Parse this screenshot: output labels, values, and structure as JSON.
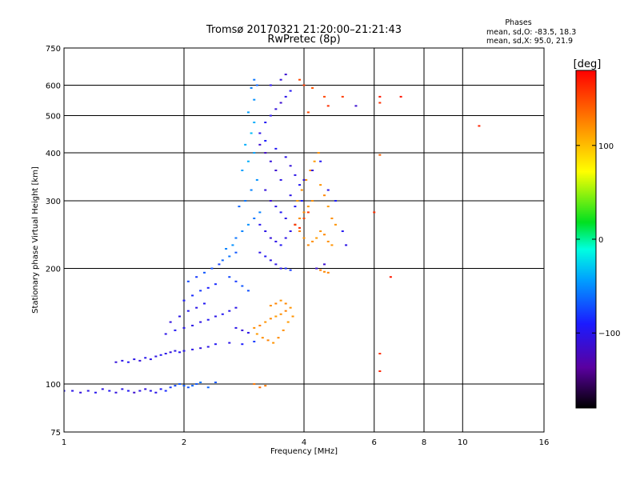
{
  "title": "Tromsø 20170321 21:20:00–21:21:43",
  "subtitle": "RwPretec (8p)",
  "stats": {
    "heading": "Phases",
    "line_o": "mean, sd,O: -83.5, 18.3",
    "line_x": "mean, sd,X:  95.0, 21.9"
  },
  "colorbar": {
    "label": "[deg]",
    "ticks": [
      {
        "value": 100,
        "label": "100"
      },
      {
        "value": 0,
        "label": "0"
      },
      {
        "value": -100,
        "label": "−100"
      }
    ]
  },
  "chart_data": {
    "type": "scatter",
    "xlabel": "Frequency [MHz]",
    "ylabel": "Stationary phase Virtual Height [km]",
    "xscale": "log",
    "yscale": "log",
    "xlim": [
      1,
      16
    ],
    "ylim": [
      75,
      750
    ],
    "clim": [
      -180,
      180
    ],
    "x_ticks": [
      {
        "value": 1,
        "label": "1"
      },
      {
        "value": 2,
        "label": "2"
      },
      {
        "value": 4,
        "label": "4"
      },
      {
        "value": 6,
        "label": "6"
      },
      {
        "value": 8,
        "label": "8"
      },
      {
        "value": 10,
        "label": "10"
      },
      {
        "value": 16,
        "label": "16"
      }
    ],
    "y_ticks": [
      {
        "value": 75,
        "label": "75"
      },
      {
        "value": 100,
        "label": "100"
      },
      {
        "value": 200,
        "label": "200"
      },
      {
        "value": 300,
        "label": "300"
      },
      {
        "value": 400,
        "label": "400"
      },
      {
        "value": 500,
        "label": "500"
      },
      {
        "value": 600,
        "label": "600"
      },
      {
        "value": 750,
        "label": "750"
      }
    ],
    "series": [
      {
        "points": [
          [
            1.0,
            96,
            -95
          ],
          [
            1.05,
            96,
            -100
          ],
          [
            1.1,
            95,
            -105
          ],
          [
            1.15,
            96,
            -100
          ],
          [
            1.2,
            95,
            -98
          ],
          [
            1.25,
            97,
            -102
          ],
          [
            1.3,
            96,
            -96
          ],
          [
            1.35,
            95,
            -104
          ],
          [
            1.4,
            97,
            -100
          ],
          [
            1.45,
            96,
            -95
          ],
          [
            1.5,
            95,
            -110
          ],
          [
            1.55,
            96,
            -100
          ],
          [
            1.6,
            97,
            -105
          ],
          [
            1.65,
            96,
            -98
          ],
          [
            1.7,
            95,
            -100
          ],
          [
            1.75,
            97,
            -92
          ],
          [
            1.8,
            96,
            -85
          ],
          [
            1.85,
            98,
            -80
          ],
          [
            1.9,
            99,
            -75
          ],
          [
            1.95,
            100,
            -70
          ],
          [
            2.0,
            99,
            -68
          ],
          [
            2.05,
            98,
            -72
          ],
          [
            2.1,
            99,
            -65
          ],
          [
            2.15,
            100,
            -70
          ],
          [
            2.2,
            101,
            -60
          ],
          [
            2.3,
            98,
            -65
          ],
          [
            2.4,
            101,
            -70
          ],
          [
            1.35,
            114,
            -105
          ],
          [
            1.4,
            115,
            -100
          ],
          [
            1.45,
            114,
            -95
          ],
          [
            1.5,
            116,
            -100
          ],
          [
            1.55,
            115,
            -105
          ],
          [
            1.6,
            117,
            -98
          ],
          [
            1.65,
            116,
            -100
          ],
          [
            1.7,
            118,
            -102
          ],
          [
            1.75,
            119,
            -96
          ],
          [
            1.8,
            120,
            -100
          ],
          [
            1.85,
            121,
            -104
          ],
          [
            1.9,
            122,
            -100
          ],
          [
            1.95,
            121,
            -95
          ],
          [
            2.0,
            122,
            -98
          ],
          [
            2.1,
            123,
            -100
          ],
          [
            2.2,
            124,
            -105
          ],
          [
            2.3,
            125,
            -100
          ],
          [
            2.4,
            127,
            -95
          ],
          [
            2.6,
            128,
            -100
          ],
          [
            2.8,
            127,
            -90
          ],
          [
            3.0,
            129,
            -80
          ],
          [
            1.8,
            135,
            -100
          ],
          [
            1.9,
            138,
            -95
          ],
          [
            2.0,
            140,
            -98
          ],
          [
            2.1,
            142,
            -100
          ],
          [
            2.2,
            145,
            -102
          ],
          [
            2.3,
            147,
            -96
          ],
          [
            2.4,
            150,
            -100
          ],
          [
            2.5,
            152,
            -95
          ],
          [
            2.6,
            155,
            -98
          ],
          [
            2.7,
            158,
            -100
          ],
          [
            1.85,
            145,
            -104
          ],
          [
            1.95,
            150,
            -100
          ],
          [
            2.05,
            155,
            -96
          ],
          [
            2.15,
            158,
            -100
          ],
          [
            2.25,
            162,
            -95
          ],
          [
            2.0,
            165,
            -90
          ],
          [
            2.1,
            170,
            -85
          ],
          [
            2.2,
            175,
            -80
          ],
          [
            2.3,
            178,
            -90
          ],
          [
            2.4,
            182,
            -85
          ],
          [
            2.05,
            185,
            -75
          ],
          [
            2.15,
            190,
            -80
          ],
          [
            2.25,
            195,
            -70
          ],
          [
            2.35,
            200,
            -72
          ],
          [
            2.45,
            205,
            -78
          ],
          [
            2.5,
            210,
            -65
          ],
          [
            2.6,
            215,
            -60
          ],
          [
            2.7,
            220,
            -70
          ],
          [
            2.55,
            225,
            -55
          ],
          [
            2.65,
            230,
            -50
          ],
          [
            2.7,
            240,
            -60
          ],
          [
            2.8,
            250,
            -55
          ],
          [
            2.9,
            260,
            -50
          ],
          [
            3.0,
            270,
            -60
          ],
          [
            3.1,
            280,
            -55
          ],
          [
            2.75,
            290,
            -65
          ],
          [
            2.85,
            300,
            -60
          ],
          [
            2.95,
            320,
            -55
          ],
          [
            3.05,
            340,
            -50
          ],
          [
            2.8,
            360,
            -45
          ],
          [
            2.9,
            380,
            -40
          ],
          [
            3.0,
            400,
            -45
          ],
          [
            2.85,
            420,
            -40
          ],
          [
            2.95,
            450,
            -35
          ],
          [
            3.0,
            480,
            -40
          ],
          [
            2.9,
            510,
            -45
          ],
          [
            3.0,
            550,
            -50
          ],
          [
            2.95,
            590,
            -55
          ],
          [
            3.0,
            620,
            -60
          ],
          [
            3.05,
            600,
            -65
          ],
          [
            3.1,
            420,
            -110
          ],
          [
            3.2,
            400,
            -115
          ],
          [
            3.3,
            380,
            -105
          ],
          [
            3.4,
            360,
            -110
          ],
          [
            3.5,
            340,
            -100
          ],
          [
            3.2,
            320,
            -105
          ],
          [
            3.3,
            300,
            -110
          ],
          [
            3.4,
            290,
            -100
          ],
          [
            3.5,
            280,
            -95
          ],
          [
            3.6,
            270,
            -100
          ],
          [
            3.1,
            260,
            -98
          ],
          [
            3.2,
            250,
            -100
          ],
          [
            3.3,
            240,
            -105
          ],
          [
            3.4,
            235,
            -100
          ],
          [
            3.5,
            230,
            -95
          ],
          [
            3.6,
            240,
            -102
          ],
          [
            3.7,
            250,
            -100
          ],
          [
            3.8,
            260,
            -105
          ],
          [
            3.1,
            450,
            -100
          ],
          [
            3.2,
            480,
            -95
          ],
          [
            3.3,
            500,
            -100
          ],
          [
            3.4,
            520,
            -105
          ],
          [
            3.5,
            540,
            -110
          ],
          [
            3.6,
            560,
            -100
          ],
          [
            3.7,
            580,
            -95
          ],
          [
            3.3,
            600,
            -100
          ],
          [
            3.5,
            620,
            -105
          ],
          [
            3.6,
            640,
            -110
          ],
          [
            3.2,
            430,
            -90
          ],
          [
            3.4,
            410,
            -95
          ],
          [
            3.6,
            390,
            -100
          ],
          [
            3.7,
            370,
            -105
          ],
          [
            3.8,
            350,
            -100
          ],
          [
            3.9,
            330,
            -95
          ],
          [
            3.7,
            310,
            -100
          ],
          [
            3.8,
            290,
            -95
          ],
          [
            3.9,
            270,
            -100
          ],
          [
            3.95,
            300,
            -90
          ],
          [
            3.1,
            220,
            -100
          ],
          [
            3.2,
            215,
            -95
          ],
          [
            3.3,
            210,
            -100
          ],
          [
            3.4,
            205,
            -102
          ],
          [
            3.5,
            200,
            -98
          ],
          [
            3.6,
            200,
            -85
          ],
          [
            3.7,
            198,
            -80
          ],
          [
            2.6,
            190,
            -75
          ],
          [
            2.7,
            185,
            -80
          ],
          [
            2.8,
            180,
            -70
          ],
          [
            2.9,
            175,
            -72
          ],
          [
            2.7,
            140,
            -100
          ],
          [
            2.8,
            138,
            -105
          ],
          [
            2.9,
            136,
            -100
          ],
          [
            3.0,
            140,
            120
          ],
          [
            3.1,
            142,
            125
          ],
          [
            3.2,
            145,
            118
          ],
          [
            3.3,
            148,
            122
          ],
          [
            3.4,
            150,
            115
          ],
          [
            3.5,
            152,
            120
          ],
          [
            3.6,
            155,
            125
          ],
          [
            3.7,
            158,
            118
          ],
          [
            3.05,
            135,
            115
          ],
          [
            3.15,
            132,
            120
          ],
          [
            3.25,
            130,
            125
          ],
          [
            3.35,
            128,
            118
          ],
          [
            3.45,
            132,
            122
          ],
          [
            3.55,
            138,
            120
          ],
          [
            3.65,
            145,
            115
          ],
          [
            3.75,
            150,
            118
          ],
          [
            3.3,
            160,
            120
          ],
          [
            3.4,
            162,
            125
          ],
          [
            3.5,
            165,
            118
          ],
          [
            3.6,
            162,
            122
          ],
          [
            3.0,
            100,
            130
          ],
          [
            3.1,
            98,
            135
          ],
          [
            3.2,
            99,
            128
          ],
          [
            3.8,
            260,
            120
          ],
          [
            3.9,
            270,
            118
          ],
          [
            4.0,
            280,
            122
          ],
          [
            4.1,
            290,
            115
          ],
          [
            4.2,
            300,
            120
          ],
          [
            3.9,
            250,
            125
          ],
          [
            4.0,
            240,
            118
          ],
          [
            4.1,
            230,
            122
          ],
          [
            4.2,
            235,
            120
          ],
          [
            4.3,
            240,
            115
          ],
          [
            4.4,
            250,
            118
          ],
          [
            4.5,
            245,
            122
          ],
          [
            4.6,
            235,
            120
          ],
          [
            4.7,
            230,
            118
          ],
          [
            3.85,
            300,
            115
          ],
          [
            3.95,
            320,
            120
          ],
          [
            4.05,
            340,
            118
          ],
          [
            4.15,
            360,
            122
          ],
          [
            4.25,
            380,
            115
          ],
          [
            4.35,
            400,
            120
          ],
          [
            4.4,
            330,
            118
          ],
          [
            4.5,
            310,
            122
          ],
          [
            4.6,
            290,
            115
          ],
          [
            4.7,
            270,
            120
          ],
          [
            4.8,
            260,
            118
          ],
          [
            4.3,
            200,
            125
          ],
          [
            4.4,
            198,
            128
          ],
          [
            4.5,
            196,
            122
          ],
          [
            4.6,
            195,
            125
          ],
          [
            3.8,
            260,
            155
          ],
          [
            3.9,
            255,
            160
          ],
          [
            4.0,
            270,
            150
          ],
          [
            4.1,
            280,
            158
          ],
          [
            4.0,
            340,
            -100
          ],
          [
            4.2,
            360,
            -105
          ],
          [
            4.4,
            380,
            -95
          ],
          [
            4.6,
            320,
            -100
          ],
          [
            4.8,
            300,
            -90
          ],
          [
            5.0,
            250,
            -95
          ],
          [
            5.1,
            230,
            -100
          ],
          [
            4.5,
            205,
            -110
          ],
          [
            4.3,
            200,
            -105
          ],
          [
            3.9,
            620,
            150
          ],
          [
            4.0,
            600,
            155
          ],
          [
            4.2,
            590,
            145
          ],
          [
            4.5,
            560,
            150
          ],
          [
            5.0,
            560,
            155
          ],
          [
            4.6,
            530,
            160
          ],
          [
            4.1,
            510,
            150
          ],
          [
            5.4,
            530,
            -110
          ],
          [
            6.2,
            560,
            170
          ],
          [
            6.2,
            540,
            160
          ],
          [
            7.0,
            560,
            172
          ],
          [
            6.2,
            395,
            140
          ],
          [
            6.0,
            280,
            160
          ],
          [
            6.6,
            190,
            170
          ],
          [
            6.2,
            120,
            160
          ],
          [
            6.2,
            108,
            165
          ],
          [
            11.0,
            470,
            165
          ]
        ]
      }
    ]
  }
}
